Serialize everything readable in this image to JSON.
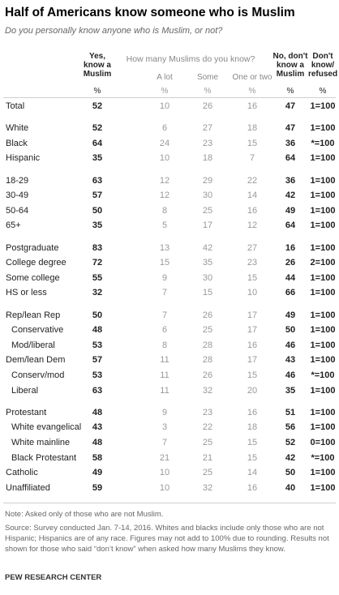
{
  "chart_data": {
    "type": "table",
    "title": "Half of Americans know someone who is Muslim",
    "subtitle": "Do you personally know anyone who is Muslim, or not?",
    "group_header": "How many Muslims do you know?",
    "columns": [
      {
        "key": "yes",
        "label": "Yes, know a Muslim",
        "unit": "%"
      },
      {
        "key": "alot",
        "label": "A lot",
        "unit": "%"
      },
      {
        "key": "some",
        "label": "Some",
        "unit": "%"
      },
      {
        "key": "oneortwo",
        "label": "One or two",
        "unit": "%"
      },
      {
        "key": "no",
        "label": "No, don't know a Muslim",
        "unit": "%"
      },
      {
        "key": "dk",
        "label": "Don't know/ refused",
        "unit": "%"
      }
    ],
    "rows": [
      {
        "label": "Total",
        "values": [
          "52",
          "10",
          "26",
          "16",
          "47",
          "1=100"
        ],
        "group": 0,
        "indent": false
      },
      {
        "label": "White",
        "values": [
          "52",
          "6",
          "27",
          "18",
          "47",
          "1=100"
        ],
        "group": 1,
        "indent": false
      },
      {
        "label": "Black",
        "values": [
          "64",
          "24",
          "23",
          "15",
          "36",
          "*=100"
        ],
        "group": 1,
        "indent": false
      },
      {
        "label": "Hispanic",
        "values": [
          "35",
          "10",
          "18",
          "7",
          "64",
          "1=100"
        ],
        "group": 1,
        "indent": false
      },
      {
        "label": "18-29",
        "values": [
          "63",
          "12",
          "29",
          "22",
          "36",
          "1=100"
        ],
        "group": 2,
        "indent": false
      },
      {
        "label": "30-49",
        "values": [
          "57",
          "12",
          "30",
          "14",
          "42",
          "1=100"
        ],
        "group": 2,
        "indent": false
      },
      {
        "label": "50-64",
        "values": [
          "50",
          "8",
          "25",
          "16",
          "49",
          "1=100"
        ],
        "group": 2,
        "indent": false
      },
      {
        "label": "65+",
        "values": [
          "35",
          "5",
          "17",
          "12",
          "64",
          "1=100"
        ],
        "group": 2,
        "indent": false
      },
      {
        "label": "Postgraduate",
        "values": [
          "83",
          "13",
          "42",
          "27",
          "16",
          "1=100"
        ],
        "group": 3,
        "indent": false
      },
      {
        "label": "College degree",
        "values": [
          "72",
          "15",
          "35",
          "23",
          "26",
          "2=100"
        ],
        "group": 3,
        "indent": false
      },
      {
        "label": "Some college",
        "values": [
          "55",
          "9",
          "30",
          "15",
          "44",
          "1=100"
        ],
        "group": 3,
        "indent": false
      },
      {
        "label": "HS or less",
        "values": [
          "32",
          "7",
          "15",
          "10",
          "66",
          "1=100"
        ],
        "group": 3,
        "indent": false
      },
      {
        "label": "Rep/lean Rep",
        "values": [
          "50",
          "7",
          "26",
          "17",
          "49",
          "1=100"
        ],
        "group": 4,
        "indent": false
      },
      {
        "label": "Conservative",
        "values": [
          "48",
          "6",
          "25",
          "17",
          "50",
          "1=100"
        ],
        "group": 4,
        "indent": true
      },
      {
        "label": "Mod/liberal",
        "values": [
          "53",
          "8",
          "28",
          "16",
          "46",
          "1=100"
        ],
        "group": 4,
        "indent": true
      },
      {
        "label": "Dem/lean Dem",
        "values": [
          "57",
          "11",
          "28",
          "17",
          "43",
          "1=100"
        ],
        "group": 4,
        "indent": false
      },
      {
        "label": "Conserv/mod",
        "values": [
          "53",
          "11",
          "26",
          "15",
          "46",
          "*=100"
        ],
        "group": 4,
        "indent": true
      },
      {
        "label": "Liberal",
        "values": [
          "63",
          "11",
          "32",
          "20",
          "35",
          "1=100"
        ],
        "group": 4,
        "indent": true
      },
      {
        "label": "Protestant",
        "values": [
          "48",
          "9",
          "23",
          "16",
          "51",
          "1=100"
        ],
        "group": 5,
        "indent": false
      },
      {
        "label": "White evangelical",
        "values": [
          "43",
          "3",
          "22",
          "18",
          "56",
          "1=100"
        ],
        "group": 5,
        "indent": true
      },
      {
        "label": "White mainline",
        "values": [
          "48",
          "7",
          "25",
          "15",
          "52",
          "0=100"
        ],
        "group": 5,
        "indent": true
      },
      {
        "label": "Black Protestant",
        "values": [
          "58",
          "21",
          "21",
          "15",
          "42",
          "*=100"
        ],
        "group": 5,
        "indent": true
      },
      {
        "label": "Catholic",
        "values": [
          "49",
          "10",
          "25",
          "14",
          "50",
          "1=100"
        ],
        "group": 5,
        "indent": false
      },
      {
        "label": "Unaffiliated",
        "values": [
          "59",
          "10",
          "32",
          "16",
          "40",
          "1=100"
        ],
        "group": 5,
        "indent": false
      }
    ]
  },
  "footer": {
    "note": "Note: Asked only of those who are not Muslim.",
    "source": "Source: Survey conducted Jan. 7-14, 2016. Whites and blacks include only those who are not Hispanic; Hispanics are of any race. Figures may not add to 100% due to rounding. Results not shown for those who said “don’t know” when asked how many Muslims they know.",
    "credit": "PEW RESEARCH CENTER"
  }
}
